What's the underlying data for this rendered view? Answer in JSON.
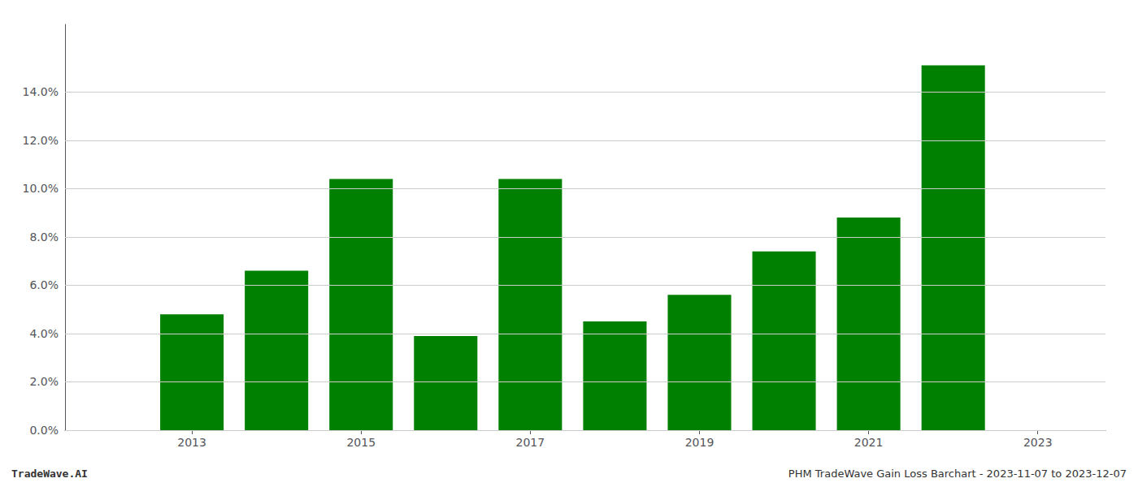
{
  "chart_data": {
    "type": "bar",
    "x": [
      2013,
      2014,
      2015,
      2016,
      2017,
      2018,
      2019,
      2020,
      2021,
      2022
    ],
    "values": [
      0.048,
      0.066,
      0.104,
      0.039,
      0.104,
      0.045,
      0.056,
      0.074,
      0.088,
      0.151
    ],
    "color": "#008000",
    "xlim": [
      2011.5,
      2023.8
    ],
    "xticks": [
      2013,
      2015,
      2017,
      2019,
      2021,
      2023
    ],
    "ylim": [
      0.0,
      0.168
    ],
    "yticks": [
      {
        "value": 0.0,
        "label": "0.0%"
      },
      {
        "value": 0.02,
        "label": "2.0%"
      },
      {
        "value": 0.04,
        "label": "4.0%"
      },
      {
        "value": 0.06,
        "label": "6.0%"
      },
      {
        "value": 0.08,
        "label": "8.0%"
      },
      {
        "value": 0.1,
        "label": "10.0%"
      },
      {
        "value": 0.12,
        "label": "12.0%"
      },
      {
        "value": 0.14,
        "label": "14.0%"
      }
    ],
    "grid": true,
    "annotations": [
      "TradeWave.AI",
      "PHM TradeWave Gain Loss Barchart - 2023-11-07 to 2023-12-07"
    ]
  }
}
